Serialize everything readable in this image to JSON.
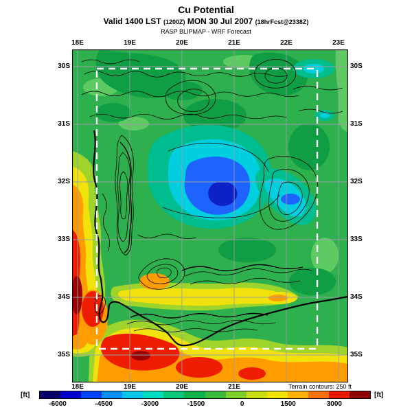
{
  "header": {
    "title": "Cu Potential",
    "valid_line": {
      "part1": "Valid 1400 LST",
      "zulu": "(1200Z)",
      "part2": "MON 30 Jul 2007",
      "fcst": "(18hrFcst@2338Z)"
    },
    "model_line": "RASP BLIPMAP - WRF Forecast"
  },
  "map": {
    "top_ticks": [
      "18E",
      "19E",
      "20E",
      "21E",
      "22E",
      "23E"
    ],
    "bottom_ticks": [
      "18E",
      "19E",
      "20E",
      "21E"
    ],
    "left_ticks": [
      "30S",
      "31S",
      "32S",
      "33S",
      "34S",
      "35S"
    ],
    "right_ticks": [
      "30S",
      "31S",
      "32S",
      "33S",
      "34S",
      "35S"
    ],
    "terrain_note": "Terrain contours: 250 ft"
  },
  "colorbar": {
    "unit_left": "[ft]",
    "unit_right": "[ft]",
    "tick_labels": [
      "-6000",
      "-4500",
      "-3000",
      "-1500",
      "0",
      "1500",
      "3000"
    ],
    "segment_colors": [
      "#08006a",
      "#0000cd",
      "#0040ff",
      "#0090ff",
      "#00c4e8",
      "#00dcc0",
      "#00c878",
      "#0bb44a",
      "#3cba3c",
      "#7ecf28",
      "#c8dc10",
      "#f0e000",
      "#ffb000",
      "#ff7000",
      "#e81800",
      "#8f0000"
    ]
  },
  "palette": {
    "field_green": "#2db04d",
    "field_dark_green": "#0f9e44",
    "field_light_green": "#5ecb62",
    "field_teal": "#00bd8f",
    "field_cyan": "#00cfe0",
    "field_blue": "#1f63ff",
    "field_navy": "#0d22c4",
    "field_yellow_green": "#9fd42c",
    "field_yellow": "#f2e20c",
    "field_orange": "#ff9d00",
    "field_red": "#ee1c00",
    "field_dark_red": "#9a0000",
    "grid_gray": "#9aa0a6",
    "domain_dash_white": "#ffffff"
  },
  "chart_data": {
    "type": "heatmap",
    "title": "Cu Potential",
    "units": "ft",
    "valid": "1400 LST (1200Z) MON 30 Jul 2007",
    "forecast_offset": "18hrFcst@2338Z",
    "model": "RASP BLIPMAP - WRF Forecast",
    "x_axis": {
      "label": "longitude",
      "ticks": [
        "18E",
        "19E",
        "20E",
        "21E",
        "22E",
        "23E"
      ]
    },
    "y_axis": {
      "label": "latitude",
      "ticks": [
        "30S",
        "31S",
        "32S",
        "33S",
        "34S",
        "35S"
      ]
    },
    "colorbar": {
      "min": -6000,
      "max": 3000,
      "ticks": [
        -6000,
        -4500,
        -3000,
        -1500,
        0,
        1500,
        3000
      ],
      "units": "ft"
    },
    "terrain_contour_interval_ft": 250,
    "qualitative_regions": [
      {
        "area": "west coast strip",
        "approx_value_ft": "+500 to +2000",
        "color": "orange-red"
      },
      {
        "area": "south coast strip",
        "approx_value_ft": "+500 to +2000",
        "color": "orange-red"
      },
      {
        "area": "central interior 20-21E / 31.5-32.5S",
        "approx_value_ft": "-4500 to -6000",
        "color": "blue with navy core"
      },
      {
        "area": "most of interior plateau",
        "approx_value_ft": "-1500 to -3000",
        "color": "green"
      },
      {
        "area": "inland valley band near 33.8S",
        "approx_value_ft": "-500 to +500",
        "color": "yellow-orange"
      }
    ]
  }
}
